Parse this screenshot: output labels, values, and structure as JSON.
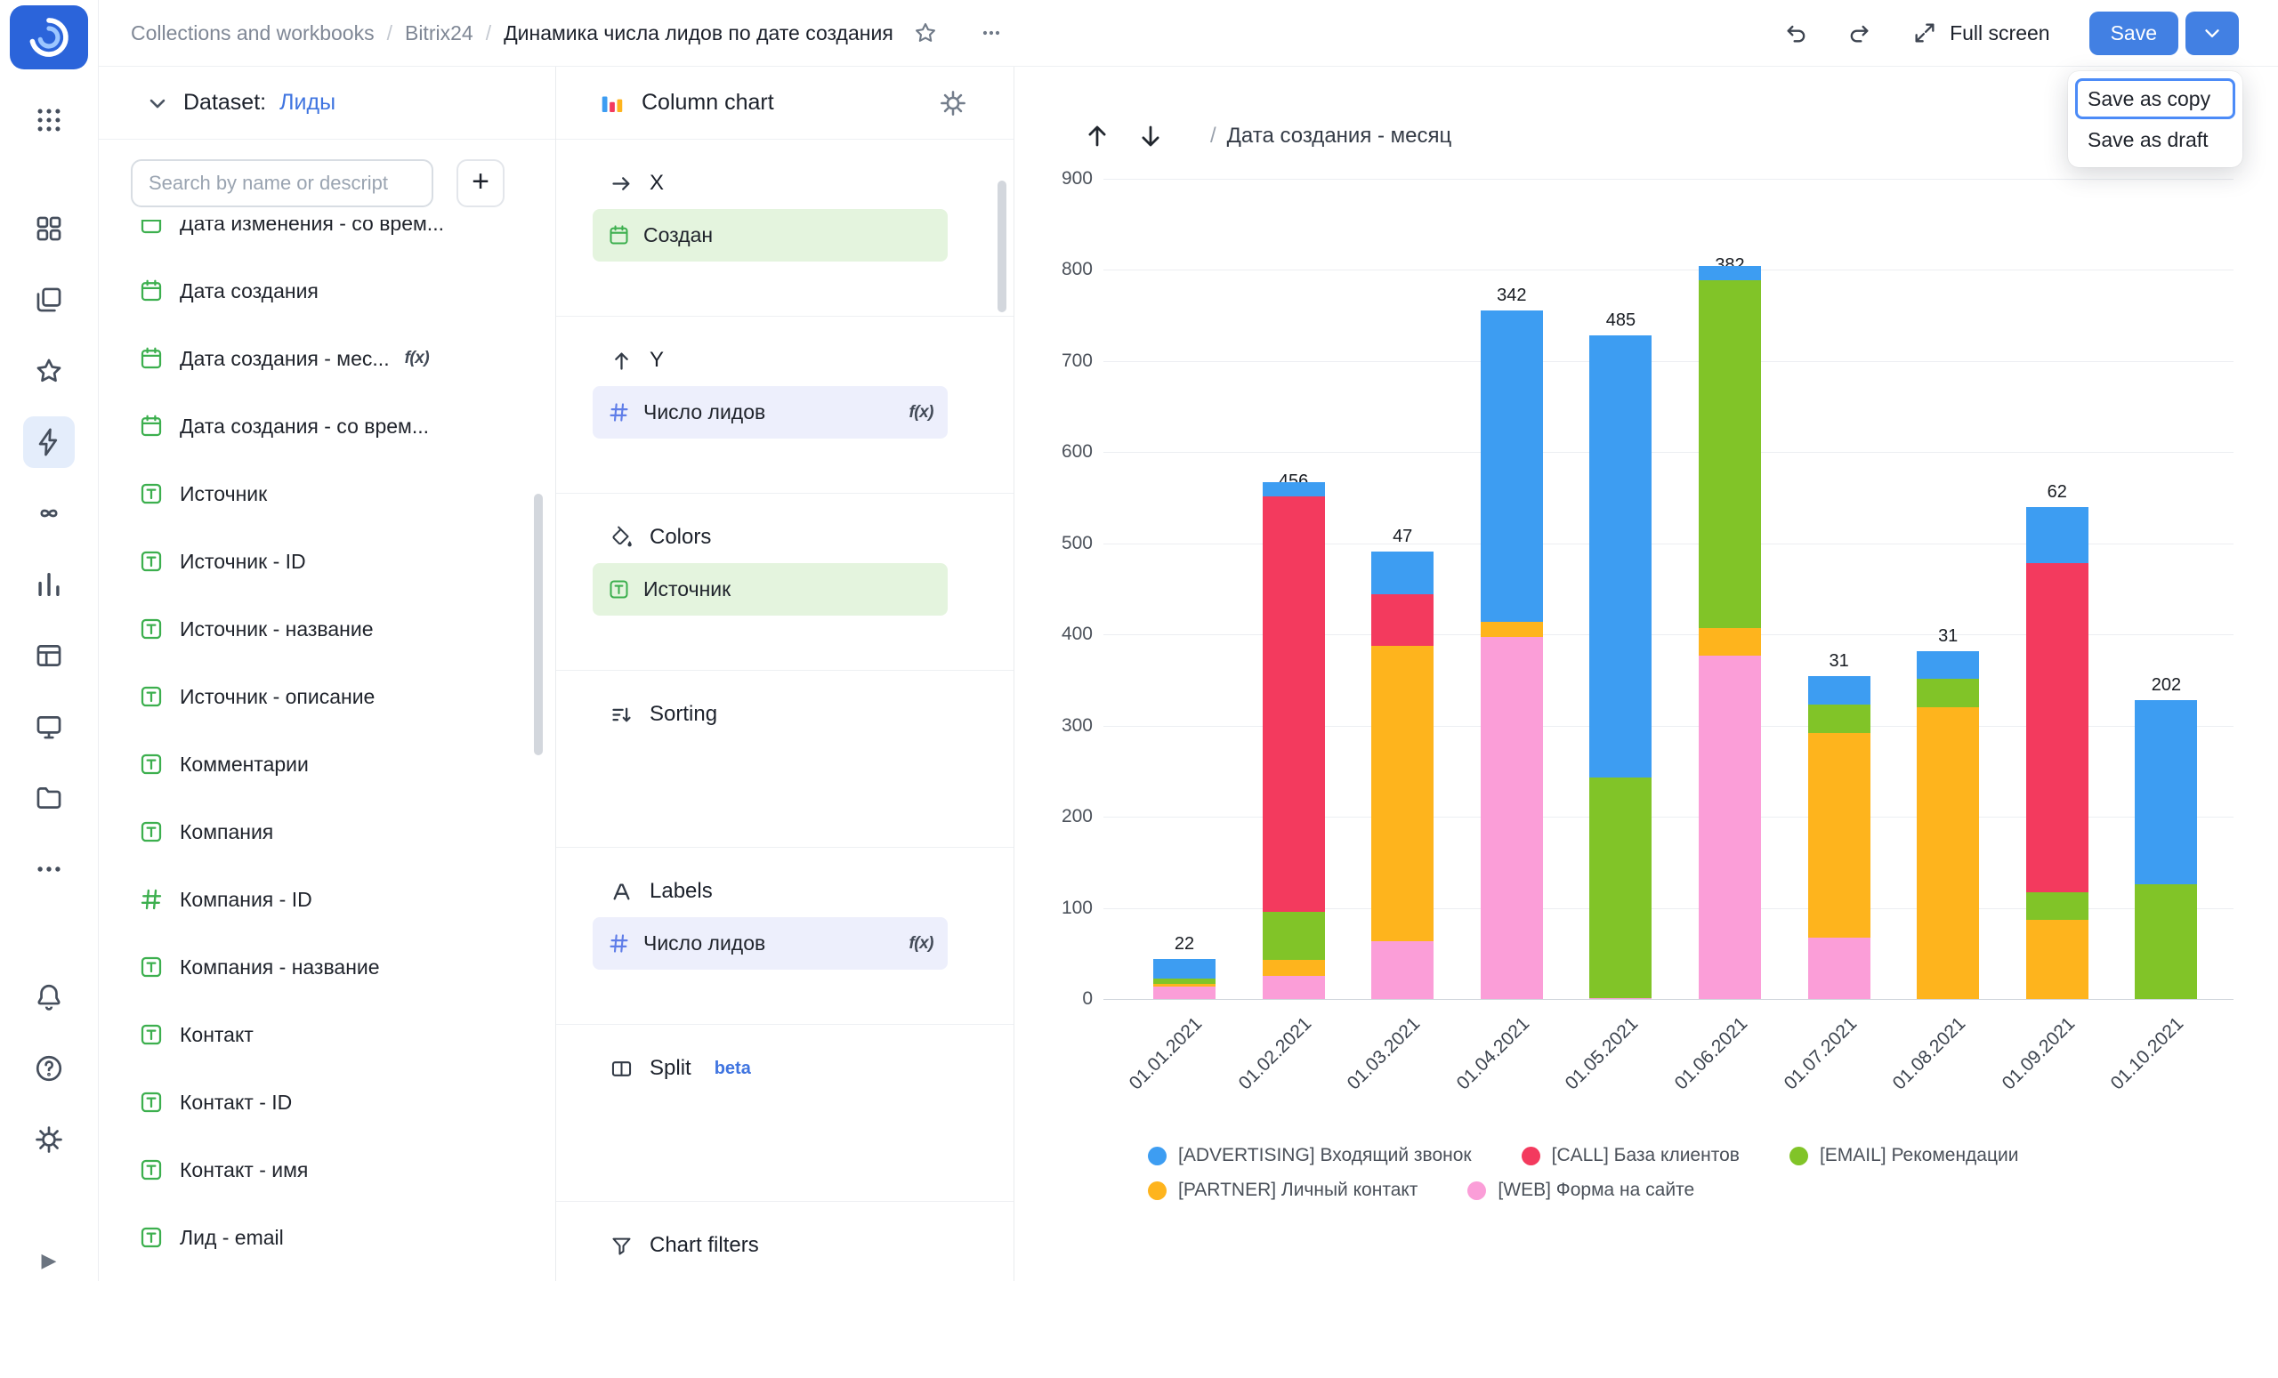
{
  "topbar": {
    "breadcrumbs": [
      "Collections and workbooks",
      "Bitrix24",
      "Динамика числа лидов по дате создания"
    ],
    "separator": "/",
    "full_screen_label": "Full screen",
    "save_label": "Save",
    "save_menu": {
      "items": [
        "Save as copy",
        "Save as draft"
      ],
      "focused_index": 0
    }
  },
  "dataset_panel": {
    "label": "Dataset:",
    "dataset_name": "Лиды",
    "search_placeholder": "Search by name or descript",
    "add_button_label": "+",
    "fields": [
      {
        "name": "Дата изменения - со врем...",
        "type": "date",
        "clipped": true
      },
      {
        "name": "Дата создания",
        "type": "date"
      },
      {
        "name": "Дата создания - мес...",
        "type": "date",
        "fx": true
      },
      {
        "name": "Дата создания - со врем...",
        "type": "date"
      },
      {
        "name": "Источник",
        "type": "string"
      },
      {
        "name": "Источник - ID",
        "type": "string"
      },
      {
        "name": "Источник - название",
        "type": "string"
      },
      {
        "name": "Источник - описание",
        "type": "string"
      },
      {
        "name": "Комментарии",
        "type": "string"
      },
      {
        "name": "Компания",
        "type": "string"
      },
      {
        "name": "Компания - ID",
        "type": "number"
      },
      {
        "name": "Компания - название",
        "type": "string"
      },
      {
        "name": "Контакт",
        "type": "string"
      },
      {
        "name": "Контакт - ID",
        "type": "string"
      },
      {
        "name": "Контакт - имя",
        "type": "string"
      },
      {
        "name": "Лид - email",
        "type": "string"
      }
    ]
  },
  "config_panel": {
    "title": "Column chart",
    "sections": [
      {
        "label": "X",
        "icon": "arrow-right",
        "fields": [
          {
            "name": "Создан",
            "style": "dimension",
            "icon": "calendar"
          }
        ]
      },
      {
        "label": "Y",
        "icon": "arrow-up",
        "fields": [
          {
            "name": "Число лидов",
            "style": "measure",
            "icon": "hash",
            "fx": true
          }
        ]
      },
      {
        "label": "Colors",
        "icon": "bucket",
        "fields": [
          {
            "name": "Источник",
            "style": "dimension",
            "icon": "string"
          }
        ]
      },
      {
        "label": "Sorting",
        "icon": "sort",
        "fields": []
      },
      {
        "label": "Labels",
        "icon": "letter-a",
        "fields": [
          {
            "name": "Число лидов",
            "style": "measure",
            "icon": "hash",
            "fx": true
          }
        ]
      },
      {
        "label": "Split",
        "icon": "split",
        "badge": "beta",
        "fields": []
      },
      {
        "label": "Chart filters",
        "icon": "funnel",
        "fields": []
      }
    ]
  },
  "chart_header": {
    "slash": "/",
    "breadcrumb": "Дата создания - месяц",
    "drill_up": "up",
    "drill_down": "down"
  },
  "chart_data": {
    "type": "bar",
    "stacked": true,
    "title": "Дата создания - месяц",
    "categories": [
      "01.01.2021",
      "01.02.2021",
      "01.03.2021",
      "01.04.2021",
      "01.05.2021",
      "01.06.2021",
      "01.07.2021",
      "01.08.2021",
      "01.09.2021",
      "01.10.2021"
    ],
    "series": [
      {
        "key": "web",
        "name": "[WEB] Форма на сайте",
        "color": "#fb9ed8",
        "values": [
          14,
          25,
          63,
          397,
          1,
          377,
          67,
          0,
          0,
          0
        ],
        "labeled": [
          false,
          true,
          true,
          true,
          true,
          true,
          true,
          false,
          false,
          false
        ]
      },
      {
        "key": "partner",
        "name": "[PARTNER] Личный контакт",
        "color": "#feb41d",
        "values": [
          3,
          18,
          325,
          17,
          0,
          30,
          225,
          320,
          87,
          0
        ],
        "labeled": [
          false,
          false,
          true,
          false,
          false,
          true,
          true,
          true,
          true,
          false
        ]
      },
      {
        "key": "email",
        "name": "[EMAIL] Рекомендации",
        "color": "#81c428",
        "values": [
          5,
          53,
          0,
          0,
          242,
          382,
          31,
          31,
          30,
          126
        ],
        "labeled": [
          false,
          true,
          false,
          false,
          true,
          true,
          false,
          true,
          true,
          true
        ]
      },
      {
        "key": "call",
        "name": "[CALL] База клиентов",
        "color": "#f33a5e",
        "values": [
          0,
          456,
          56,
          0,
          0,
          0,
          0,
          0,
          361,
          0
        ],
        "labeled": [
          false,
          true,
          true,
          false,
          false,
          false,
          false,
          false,
          true,
          false
        ]
      },
      {
        "key": "advertising",
        "name": "[ADVERTISING] Входящий звонок",
        "color": "#3d9df2",
        "values": [
          22,
          15,
          47,
          342,
          485,
          15,
          31,
          31,
          62,
          202
        ],
        "labeled": [
          true,
          false,
          true,
          true,
          true,
          false,
          true,
          true,
          true,
          true
        ]
      }
    ],
    "stack_order": "bottom-to-top as listed",
    "legend_rows": [
      [
        "advertising",
        "call",
        "email"
      ],
      [
        "partner",
        "web"
      ]
    ],
    "ylim": [
      0,
      900
    ],
    "yticks": [
      0,
      100,
      200,
      300,
      400,
      500,
      600,
      700,
      800,
      900
    ],
    "grid": "horizontal",
    "legend_position": "bottom"
  },
  "ui": {
    "accent_blue": "#4280e3",
    "link_blue": "#3f74e0",
    "focus_ring": "#4c8bf7",
    "field_green": "#3caf4e",
    "measure_blue": "#5f7de8",
    "fx_label": "f(x)"
  }
}
